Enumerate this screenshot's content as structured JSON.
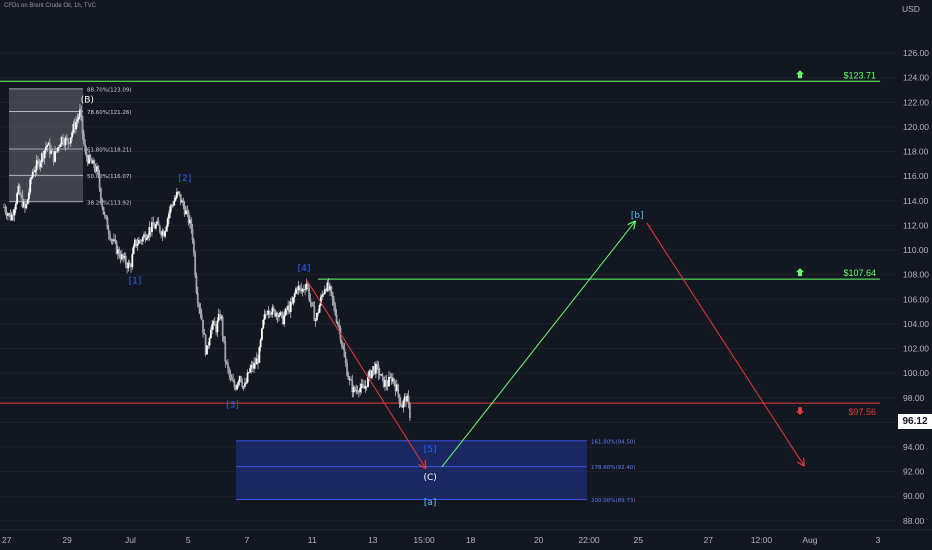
{
  "header": {
    "symbol_line": "CFDs on Brent Crude Oil, 1h, TVC"
  },
  "theme": {
    "background": "#131722",
    "green": "#4caf50",
    "light_green": "#66ff66",
    "red": "#e53935",
    "wave_blue": "#2962ff",
    "wave_cyan": "#4fc3f7",
    "fib_box": "#787b86",
    "target_box": "#1c2a6b",
    "candle": "#d1d4dc"
  },
  "chart_data": {
    "type": "candlestick",
    "y_axis": {
      "unit_label": "USD",
      "range": [
        87.5,
        129.5
      ],
      "ticks": [
        "88.00",
        "90.00",
        "92.00",
        "94.00",
        "96.00",
        "98.00",
        "100.00",
        "102.00",
        "104.00",
        "106.00",
        "108.00",
        "110.00",
        "112.00",
        "114.00",
        "116.00",
        "118.00",
        "120.00",
        "122.00",
        "124.00",
        "126.00"
      ]
    },
    "x_axis": {
      "ticks": [
        "27",
        "29",
        "Jul",
        "5",
        "7",
        "11",
        "13",
        "15:00",
        "18",
        "20",
        "22:00",
        "25",
        "27",
        "12:00",
        "Aug",
        "3"
      ]
    },
    "last_price": {
      "label": "96.12",
      "value": 96.12
    },
    "price_path": [
      [
        0,
        113.5
      ],
      [
        0.3,
        112.6
      ],
      [
        0.6,
        114.8
      ],
      [
        0.9,
        113.2
      ],
      [
        1.2,
        116.4
      ],
      [
        1.5,
        117.2
      ],
      [
        1.8,
        118.6
      ],
      [
        2.1,
        117.5
      ],
      [
        2.4,
        119.1
      ],
      [
        2.7,
        118.8
      ],
      [
        3.0,
        120.3
      ],
      [
        3.2,
        121.2
      ],
      [
        3.4,
        117.8
      ],
      [
        3.6,
        117.2
      ],
      [
        3.9,
        116.5
      ],
      [
        4.2,
        112.8
      ],
      [
        4.5,
        111.0
      ],
      [
        4.8,
        109.8
      ],
      [
        5.1,
        109.0
      ],
      [
        5.3,
        108.6
      ],
      [
        5.5,
        110.5
      ],
      [
        5.8,
        110.9
      ],
      [
        6.1,
        111.7
      ],
      [
        6.4,
        112.0
      ],
      [
        6.7,
        111.4
      ],
      [
        7.0,
        113.5
      ],
      [
        7.3,
        114.6
      ],
      [
        7.6,
        113.3
      ],
      [
        7.9,
        111.6
      ],
      [
        8.1,
        106.5
      ],
      [
        8.3,
        104.5
      ],
      [
        8.5,
        101.5
      ],
      [
        8.7,
        104.0
      ],
      [
        8.9,
        103.6
      ],
      [
        9.1,
        104.9
      ],
      [
        9.3,
        101.0
      ],
      [
        9.5,
        99.5
      ],
      [
        9.7,
        98.8
      ],
      [
        9.9,
        99.9
      ],
      [
        10.1,
        98.7
      ],
      [
        10.3,
        100.2
      ],
      [
        10.5,
        100.6
      ],
      [
        10.7,
        101.3
      ],
      [
        10.9,
        104.2
      ],
      [
        11.1,
        105.4
      ],
      [
        11.3,
        104.9
      ],
      [
        11.5,
        105.0
      ],
      [
        11.7,
        104.3
      ],
      [
        11.9,
        105.2
      ],
      [
        12.1,
        105.5
      ],
      [
        12.3,
        107.1
      ],
      [
        12.5,
        106.6
      ],
      [
        12.7,
        107.4
      ],
      [
        12.9,
        105.5
      ],
      [
        13.1,
        104.3
      ],
      [
        13.3,
        105.9
      ],
      [
        13.5,
        107.2
      ],
      [
        13.7,
        106.6
      ],
      [
        13.9,
        105.0
      ],
      [
        14.1,
        103.5
      ],
      [
        14.3,
        101.2
      ],
      [
        14.5,
        99.4
      ],
      [
        14.7,
        98.5
      ],
      [
        14.9,
        98.9
      ],
      [
        15.1,
        98.6
      ],
      [
        15.3,
        99.6
      ],
      [
        15.5,
        100.4
      ],
      [
        15.7,
        100.3
      ],
      [
        15.9,
        99.3
      ],
      [
        16.1,
        99.1
      ],
      [
        16.3,
        99.7
      ],
      [
        16.5,
        98.7
      ],
      [
        16.7,
        97.3
      ],
      [
        16.9,
        98.1
      ],
      [
        17.1,
        96.2
      ]
    ],
    "annotations": {
      "fib_levels": [
        {
          "label": "88.70%(123.09)",
          "value": 123.09
        },
        {
          "label": "78.60%(121.26)",
          "value": 121.26
        },
        {
          "label": "61.80%(118.21)",
          "value": 118.21
        },
        {
          "label": "50.00%(116.07)",
          "value": 116.07
        },
        {
          "label": "38.20%(113.92)",
          "value": 113.92
        }
      ],
      "target_zone_levels": [
        {
          "label": "161.80%(94.50)",
          "value": 94.5
        },
        {
          "label": "178.60%(92.40)",
          "value": 92.4
        },
        {
          "label": "200.00%(89.73)",
          "value": 89.73
        }
      ],
      "horizontal_levels": [
        {
          "label": "$123.71",
          "value": 123.71,
          "color": "green",
          "arrow": "up"
        },
        {
          "label": "$107.64",
          "value": 107.64,
          "color": "green",
          "arrow": "up"
        },
        {
          "label": "$97.56",
          "value": 97.56,
          "color": "red",
          "arrow": "down"
        }
      ],
      "wave_labels": [
        {
          "text": "(B)",
          "x": 3.5,
          "y": 122.0,
          "color": "white"
        },
        {
          "text": "[2]",
          "x": 7.6,
          "y": 115.6,
          "color": "blue"
        },
        {
          "text": "[1]",
          "x": 5.5,
          "y": 107.3,
          "color": "blue"
        },
        {
          "text": "[4]",
          "x": 12.6,
          "y": 108.3,
          "color": "blue"
        },
        {
          "text": "[3]",
          "x": 9.6,
          "y": 97.2,
          "color": "blue"
        },
        {
          "text": "[5]",
          "x": 17.9,
          "y": 93.6,
          "color": "blue"
        },
        {
          "text": "(C)",
          "x": 17.9,
          "y": 91.3,
          "color": "white"
        },
        {
          "text": "[a]",
          "x": 17.9,
          "y": 89.3,
          "color": "cyan"
        },
        {
          "text": "[b]",
          "x": 26.6,
          "y": 112.6,
          "color": "cyan"
        }
      ],
      "projections": [
        {
          "color": "red",
          "points": [
            [
              12.7,
              107.6
            ],
            [
              17.7,
              92.3
            ]
          ]
        },
        {
          "color": "green",
          "points": [
            [
              18.4,
              92.4
            ],
            [
              26.5,
              112.3
            ]
          ]
        },
        {
          "color": "red",
          "points": [
            [
              27.0,
              112.2
            ],
            [
              33.6,
              92.5
            ]
          ]
        }
      ]
    }
  }
}
